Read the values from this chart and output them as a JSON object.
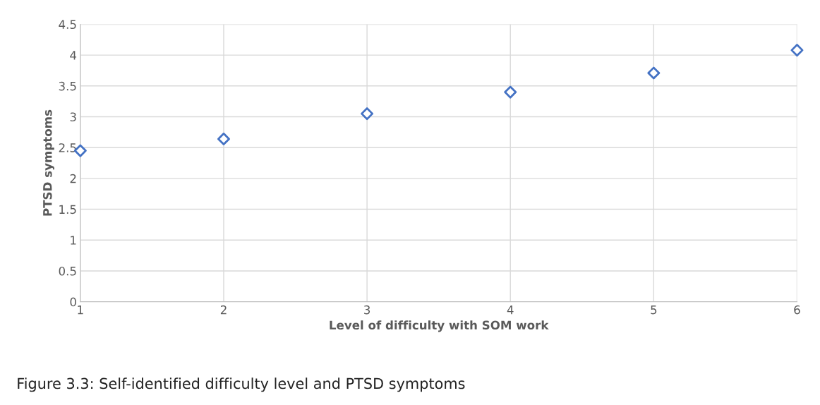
{
  "chart_data": {
    "type": "scatter",
    "xlabel": "Level of difficulty with SOM work",
    "ylabel": "PTSD symptoms",
    "x": [
      1,
      2,
      3,
      4,
      5,
      6
    ],
    "series": [
      {
        "color": "#4472c4",
        "values": [
          2.45,
          2.64,
          3.05,
          3.4,
          3.71,
          4.08
        ]
      }
    ],
    "xlim": [
      1,
      6
    ],
    "xticks": [
      1,
      2,
      3,
      4,
      5,
      6
    ],
    "ylim": [
      0,
      4.5
    ],
    "yticks": [
      0,
      0.5,
      1,
      1.5,
      2,
      2.5,
      3,
      3.5,
      4,
      4.5
    ],
    "grid": true,
    "marker": "diamond",
    "annotations": [
      "Figure 3.3: Self-identified difficulty level and PTSD symptoms"
    ]
  }
}
